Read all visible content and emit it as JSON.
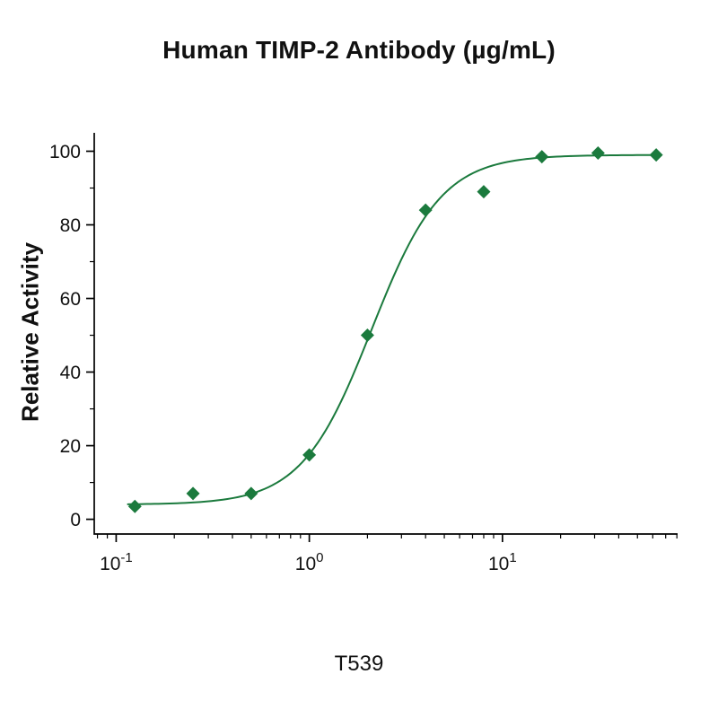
{
  "title": "Human TIMP-2 Antibody (µg/mL)",
  "caption": "T539",
  "chart_data": {
    "type": "scatter",
    "title": "Human TIMP-2 Antibody (µg/mL)",
    "xlabel": "T539",
    "ylabel": "Relative Activity",
    "x_scale": "log10",
    "xlim": [
      0.077,
      80.7
    ],
    "ylim": [
      -4,
      105
    ],
    "x_major_ticks": [
      0.1,
      1,
      10
    ],
    "y_major_ticks": [
      0,
      20,
      40,
      60,
      80,
      100
    ],
    "y_minor_step": 10,
    "grid": false,
    "legend": "none",
    "points": {
      "x": [
        0.125,
        0.25,
        0.5,
        1,
        2,
        4,
        8,
        16,
        31.25,
        62.5
      ],
      "y": [
        3.5,
        7,
        7,
        17.5,
        50,
        84,
        89,
        98.5,
        99.5,
        99
      ]
    },
    "fit": {
      "model": "4PL",
      "bottom": 4,
      "top": 99,
      "ec50": 2.1,
      "hill": 2.4,
      "x_range": [
        0.115,
        65
      ]
    },
    "colors": {
      "series": "#1b7a3d",
      "axis": "#000000",
      "text": "#111111"
    }
  }
}
